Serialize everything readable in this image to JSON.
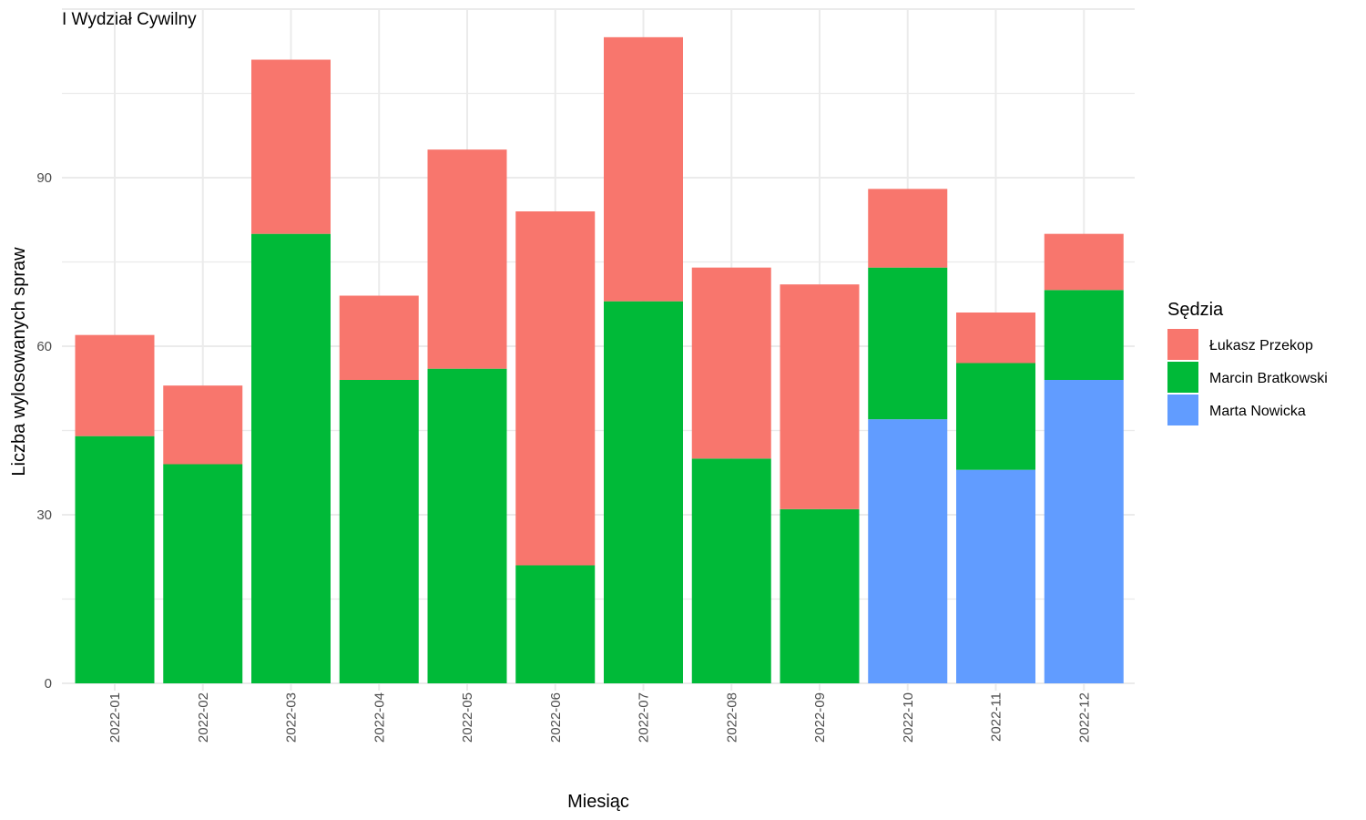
{
  "chart_data": {
    "type": "bar",
    "stacked": true,
    "title": "I Wydział Cywilny",
    "xlabel": "Miesiąc",
    "ylabel": "Liczba wylosowanych spraw",
    "categories": [
      "2022-01",
      "2022-02",
      "2022-03",
      "2022-04",
      "2022-05",
      "2022-06",
      "2022-07",
      "2022-08",
      "2022-09",
      "2022-10",
      "2022-11",
      "2022-12"
    ],
    "yticks": [
      "0",
      "30",
      "60",
      "90"
    ],
    "ylim": [
      0,
      120
    ],
    "grid": true,
    "legend": {
      "title": "Sędzia",
      "position": "right"
    },
    "series": [
      {
        "name": "Łukasz Przekop",
        "color": "#F8766D",
        "values": [
          18,
          14,
          31,
          15,
          39,
          63,
          47,
          34,
          40,
          14,
          9,
          10
        ]
      },
      {
        "name": "Marcin Bratkowski",
        "color": "#00BA38",
        "values": [
          44,
          39,
          80,
          54,
          56,
          21,
          68,
          40,
          31,
          27,
          19,
          16
        ]
      },
      {
        "name": "Marta Nowicka",
        "color": "#619CFF",
        "values": [
          0,
          0,
          0,
          0,
          0,
          0,
          0,
          0,
          0,
          47,
          38,
          54
        ]
      }
    ],
    "stack_order_bottom_to_top": [
      "Marta Nowicka",
      "Marcin Bratkowski",
      "Łukasz Przekop"
    ]
  }
}
